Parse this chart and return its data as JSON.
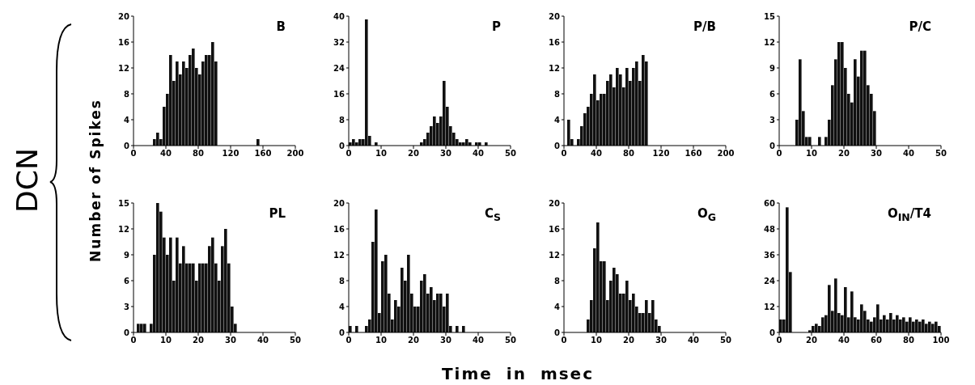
{
  "chart_data": [
    {
      "type": "histogram",
      "title": "B",
      "ylabel": "Number of Spikes",
      "annotations": [
        "DCN"
      ],
      "color": "#111111",
      "xlim": [
        0,
        200
      ],
      "xticks": [
        0,
        40,
        80,
        120,
        160,
        200
      ],
      "ylim": [
        0,
        20
      ],
      "yticks": [
        0,
        4,
        8,
        12,
        16,
        20
      ],
      "bins": [
        0,
        4,
        8,
        12,
        16,
        20,
        24,
        28,
        32,
        36,
        40,
        44,
        48,
        52,
        56,
        60,
        64,
        68,
        72,
        76,
        80,
        84,
        88,
        92,
        96,
        100,
        104,
        108,
        112,
        116,
        120,
        124,
        128,
        132,
        136,
        140,
        144,
        148,
        152,
        156,
        160,
        164,
        168,
        172,
        176,
        180,
        184,
        188,
        192,
        196,
        200
      ],
      "values": [
        0,
        0,
        0,
        0,
        0,
        0,
        1,
        2,
        1,
        6,
        8,
        14,
        10,
        13,
        11,
        13,
        12,
        14,
        15,
        12,
        11,
        13,
        14,
        14,
        16,
        13,
        0,
        0,
        0,
        0,
        0,
        0,
        0,
        0,
        0,
        0,
        0,
        0,
        1,
        0,
        0,
        0,
        0,
        0,
        0,
        0,
        0,
        0,
        0,
        0
      ]
    },
    {
      "type": "histogram",
      "title": "P",
      "color": "#111111",
      "xlim": [
        0,
        50
      ],
      "xticks": [
        0,
        10,
        20,
        30,
        40,
        50
      ],
      "ylim": [
        0,
        40
      ],
      "yticks": [
        0,
        8,
        16,
        24,
        32,
        40
      ],
      "bins": [
        0,
        1,
        2,
        3,
        4,
        5,
        6,
        7,
        8,
        9,
        10,
        11,
        12,
        13,
        14,
        15,
        16,
        17,
        18,
        19,
        20,
        21,
        22,
        23,
        24,
        25,
        26,
        27,
        28,
        29,
        30,
        31,
        32,
        33,
        34,
        35,
        36,
        37,
        38,
        39,
        40,
        41,
        42,
        43,
        44,
        45,
        46,
        47,
        48,
        49,
        50
      ],
      "values": [
        1,
        2,
        1,
        2,
        2,
        39,
        3,
        0,
        1,
        0,
        0,
        0,
        0,
        0,
        0,
        0,
        0,
        0,
        0,
        0,
        0,
        0,
        1,
        2,
        4,
        6,
        9,
        7,
        9,
        20,
        12,
        6,
        4,
        2,
        1,
        1,
        2,
        1,
        0,
        1,
        1,
        0,
        1,
        0,
        0,
        0,
        0,
        0,
        0,
        0
      ]
    },
    {
      "type": "histogram",
      "title": "P/B",
      "color": "#111111",
      "xlim": [
        0,
        200
      ],
      "xticks": [
        0,
        40,
        80,
        120,
        160,
        200
      ],
      "ylim": [
        0,
        20
      ],
      "yticks": [
        0,
        4,
        8,
        12,
        16,
        20
      ],
      "bins": [
        0,
        4,
        8,
        12,
        16,
        20,
        24,
        28,
        32,
        36,
        40,
        44,
        48,
        52,
        56,
        60,
        64,
        68,
        72,
        76,
        80,
        84,
        88,
        92,
        96,
        100,
        104,
        108,
        112,
        116,
        120,
        124,
        128,
        132,
        136,
        140,
        144,
        148,
        152,
        156,
        160,
        164,
        168,
        172,
        176,
        180,
        184,
        188,
        192,
        196,
        200
      ],
      "values": [
        0,
        4,
        1,
        0,
        1,
        3,
        5,
        6,
        8,
        11,
        7,
        8,
        8,
        10,
        11,
        9,
        12,
        11,
        9,
        12,
        10,
        12,
        13,
        10,
        14,
        13,
        0,
        0,
        0,
        0,
        0,
        0,
        0,
        0,
        0,
        0,
        0,
        0,
        0,
        0,
        0,
        0,
        0,
        0,
        0,
        0,
        0,
        0,
        0,
        0
      ]
    },
    {
      "type": "histogram",
      "title": "P/C",
      "color": "#111111",
      "xlim": [
        0,
        50
      ],
      "xticks": [
        0,
        10,
        20,
        30,
        40,
        50
      ],
      "ylim": [
        0,
        15
      ],
      "yticks": [
        0,
        3,
        6,
        9,
        12,
        15
      ],
      "bins": [
        0,
        1,
        2,
        3,
        4,
        5,
        6,
        7,
        8,
        9,
        10,
        11,
        12,
        13,
        14,
        15,
        16,
        17,
        18,
        19,
        20,
        21,
        22,
        23,
        24,
        25,
        26,
        27,
        28,
        29,
        30,
        31,
        32,
        33,
        34,
        35,
        36,
        37,
        38,
        39,
        40,
        41,
        42,
        43,
        44,
        45,
        46,
        47,
        48,
        49,
        50
      ],
      "values": [
        0,
        0,
        0,
        0,
        0,
        3,
        10,
        4,
        1,
        1,
        0,
        0,
        1,
        0,
        1,
        3,
        7,
        10,
        12,
        12,
        9,
        6,
        5,
        10,
        8,
        11,
        11,
        7,
        6,
        4,
        0,
        0,
        0,
        0,
        0,
        0,
        0,
        0,
        0,
        0,
        0,
        0,
        0,
        0,
        0,
        0,
        0,
        0,
        0,
        0
      ]
    },
    {
      "type": "histogram",
      "title": "PL",
      "color": "#111111",
      "xlim": [
        0,
        50
      ],
      "xticks": [
        0,
        10,
        20,
        30,
        40,
        50
      ],
      "ylim": [
        0,
        15
      ],
      "yticks": [
        0,
        3,
        6,
        9,
        12,
        15
      ],
      "bins": [
        0,
        1,
        2,
        3,
        4,
        5,
        6,
        7,
        8,
        9,
        10,
        11,
        12,
        13,
        14,
        15,
        16,
        17,
        18,
        19,
        20,
        21,
        22,
        23,
        24,
        25,
        26,
        27,
        28,
        29,
        30,
        31,
        32,
        33,
        34,
        35,
        36,
        37,
        38,
        39,
        40,
        41,
        42,
        43,
        44,
        45,
        46,
        47,
        48,
        49,
        50
      ],
      "values": [
        0,
        1,
        1,
        1,
        0,
        1,
        9,
        15,
        14,
        11,
        9,
        11,
        6,
        11,
        8,
        10,
        8,
        8,
        8,
        6,
        8,
        8,
        8,
        10,
        11,
        8,
        6,
        10,
        12,
        8,
        3,
        1,
        0,
        0,
        0,
        0,
        0,
        0,
        0,
        0,
        0,
        0,
        0,
        0,
        0,
        0,
        0,
        0,
        0,
        0
      ]
    },
    {
      "type": "histogram",
      "title": "C$_{S}$",
      "xlabel": "Time in msec",
      "color": "#111111",
      "xlim": [
        0,
        50
      ],
      "xticks": [
        0,
        10,
        20,
        30,
        40,
        50
      ],
      "ylim": [
        0,
        20
      ],
      "yticks": [
        0,
        4,
        8,
        12,
        16,
        20
      ],
      "bins": [
        0,
        1,
        2,
        3,
        4,
        5,
        6,
        7,
        8,
        9,
        10,
        11,
        12,
        13,
        14,
        15,
        16,
        17,
        18,
        19,
        20,
        21,
        22,
        23,
        24,
        25,
        26,
        27,
        28,
        29,
        30,
        31,
        32,
        33,
        34,
        35,
        36,
        37,
        38,
        39,
        40,
        41,
        42,
        43,
        44,
        45,
        46,
        47,
        48,
        49,
        50
      ],
      "values": [
        1,
        0,
        1,
        0,
        0,
        1,
        2,
        14,
        19,
        3,
        11,
        12,
        6,
        2,
        5,
        4,
        10,
        8,
        12,
        6,
        4,
        4,
        8,
        9,
        6,
        7,
        5,
        6,
        6,
        4,
        6,
        1,
        0,
        1,
        0,
        1,
        0,
        0,
        0,
        0,
        0,
        0,
        0,
        0,
        0,
        0,
        0,
        0,
        0,
        0
      ]
    },
    {
      "type": "histogram",
      "title": "O$_{G}$",
      "color": "#111111",
      "xlim": [
        0,
        50
      ],
      "xticks": [
        0,
        10,
        20,
        30,
        40,
        50
      ],
      "ylim": [
        0,
        20
      ],
      "yticks": [
        0,
        4,
        8,
        12,
        16,
        20
      ],
      "bins": [
        0,
        1,
        2,
        3,
        4,
        5,
        6,
        7,
        8,
        9,
        10,
        11,
        12,
        13,
        14,
        15,
        16,
        17,
        18,
        19,
        20,
        21,
        22,
        23,
        24,
        25,
        26,
        27,
        28,
        29,
        30,
        31,
        32,
        33,
        34,
        35,
        36,
        37,
        38,
        39,
        40,
        41,
        42,
        43,
        44,
        45,
        46,
        47,
        48,
        49,
        50
      ],
      "values": [
        0,
        0,
        0,
        0,
        0,
        0,
        0,
        2,
        5,
        13,
        17,
        11,
        11,
        5,
        8,
        10,
        9,
        6,
        6,
        8,
        5,
        6,
        4,
        3,
        3,
        5,
        3,
        5,
        2,
        1,
        0,
        0,
        0,
        0,
        0,
        0,
        0,
        0,
        0,
        0,
        0,
        0,
        0,
        0,
        0,
        0,
        0,
        0,
        0,
        0
      ]
    },
    {
      "type": "histogram",
      "title": "O$_{IN}$/T4",
      "color": "#111111",
      "xlim": [
        0,
        100
      ],
      "xticks": [
        0,
        20,
        40,
        60,
        80,
        100
      ],
      "ylim": [
        0,
        60
      ],
      "yticks": [
        0,
        12,
        24,
        36,
        48,
        60
      ],
      "bins": [
        0,
        2,
        4,
        6,
        8,
        10,
        12,
        14,
        16,
        18,
        20,
        22,
        24,
        26,
        28,
        30,
        32,
        34,
        36,
        38,
        40,
        42,
        44,
        46,
        48,
        50,
        52,
        54,
        56,
        58,
        60,
        62,
        64,
        66,
        68,
        70,
        72,
        74,
        76,
        78,
        80,
        82,
        84,
        86,
        88,
        90,
        92,
        94,
        96,
        98,
        100
      ],
      "values": [
        6,
        6,
        58,
        28,
        0,
        0,
        0,
        0,
        0,
        1,
        3,
        4,
        3,
        7,
        8,
        22,
        10,
        25,
        9,
        8,
        21,
        7,
        19,
        7,
        6,
        13,
        10,
        6,
        5,
        7,
        13,
        6,
        8,
        6,
        9,
        6,
        8,
        6,
        7,
        5,
        7,
        5,
        6,
        5,
        6,
        4,
        5,
        4,
        5,
        3
      ]
    }
  ]
}
